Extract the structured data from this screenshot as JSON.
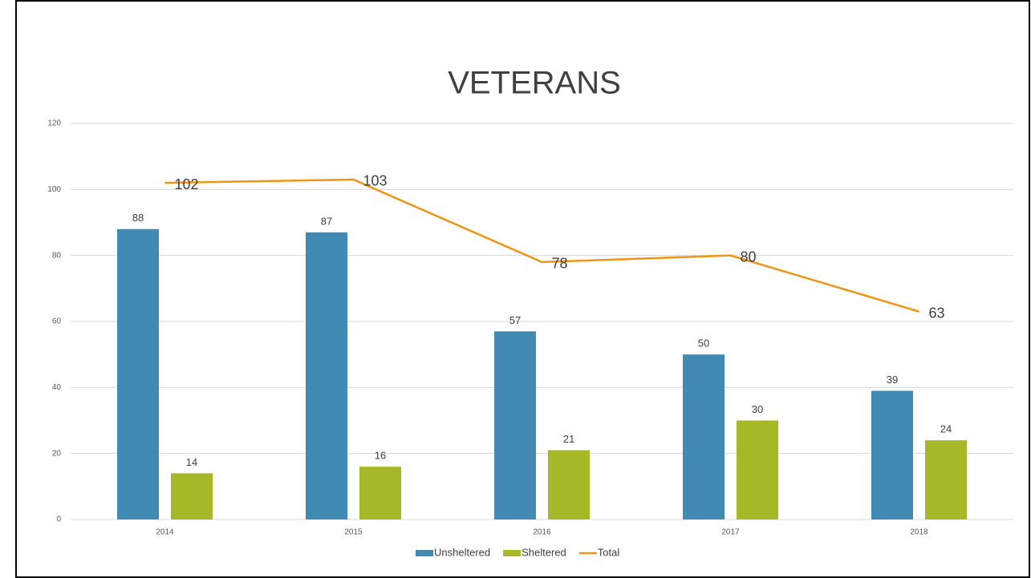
{
  "chart_data": {
    "type": "bar",
    "title": "VETERANS",
    "categories": [
      "2014",
      "2015",
      "2016",
      "2017",
      "2018"
    ],
    "series": [
      {
        "name": "Unsheltered",
        "type": "bar",
        "color": "#418ab3",
        "values": [
          88,
          87,
          57,
          50,
          39
        ]
      },
      {
        "name": "Sheltered",
        "type": "bar",
        "color": "#a6b727",
        "values": [
          14,
          16,
          21,
          30,
          24
        ]
      },
      {
        "name": "Total",
        "type": "line",
        "color": "#f09415",
        "values": [
          102,
          103,
          78,
          80,
          63
        ]
      }
    ],
    "ylim": [
      0,
      120
    ],
    "yticks": [
      0,
      20,
      40,
      60,
      80,
      100,
      120
    ],
    "grid": true,
    "legend": "bottom"
  }
}
